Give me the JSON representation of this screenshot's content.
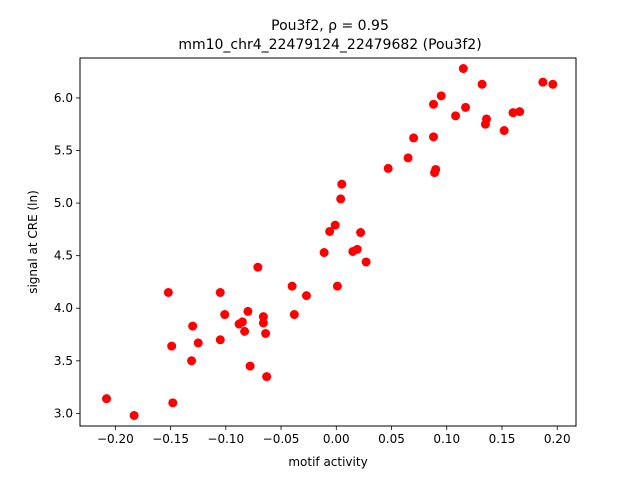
{
  "chart_data": {
    "type": "scatter",
    "title_line1": "Pou3f2, ρ = 0.95",
    "title_line2": "mm10_chr4_22479124_22479682 (Pou3f2)",
    "xlabel": "motif activity",
    "ylabel": "signal at CRE (ln)",
    "xlim": [
      -0.232,
      0.217
    ],
    "ylim": [
      2.88,
      6.38
    ],
    "xticks": [
      -0.2,
      -0.15,
      -0.1,
      -0.05,
      0.0,
      0.05,
      0.1,
      0.15,
      0.2
    ],
    "xtick_labels": [
      "−0.20",
      "−0.15",
      "−0.10",
      "−0.05",
      "0.00",
      "0.05",
      "0.10",
      "0.15",
      "0.20"
    ],
    "yticks": [
      3.0,
      3.5,
      4.0,
      4.5,
      5.0,
      5.5,
      6.0
    ],
    "ytick_labels": [
      "3.0",
      "3.5",
      "4.0",
      "4.5",
      "5.0",
      "5.5",
      "6.0"
    ],
    "marker_color": "#ff0000",
    "grid": false,
    "legend": "none",
    "series": [
      {
        "points": [
          [
            -0.208,
            3.14
          ],
          [
            -0.183,
            2.98
          ],
          [
            -0.152,
            4.15
          ],
          [
            -0.149,
            3.64
          ],
          [
            -0.148,
            3.1
          ],
          [
            -0.131,
            3.5
          ],
          [
            -0.13,
            3.83
          ],
          [
            -0.125,
            3.67
          ],
          [
            -0.105,
            4.15
          ],
          [
            -0.105,
            3.7
          ],
          [
            -0.101,
            3.94
          ],
          [
            -0.088,
            3.85
          ],
          [
            -0.085,
            3.87
          ],
          [
            -0.083,
            3.78
          ],
          [
            -0.08,
            3.97
          ],
          [
            -0.078,
            3.45
          ],
          [
            -0.071,
            4.39
          ],
          [
            -0.066,
            3.92
          ],
          [
            -0.066,
            3.86
          ],
          [
            -0.064,
            3.76
          ],
          [
            -0.063,
            3.35
          ],
          [
            -0.04,
            4.21
          ],
          [
            -0.038,
            3.94
          ],
          [
            -0.027,
            4.12
          ],
          [
            -0.011,
            4.53
          ],
          [
            -0.006,
            4.73
          ],
          [
            -0.001,
            4.79
          ],
          [
            0.001,
            4.21
          ],
          [
            0.004,
            5.04
          ],
          [
            0.005,
            5.18
          ],
          [
            0.015,
            4.54
          ],
          [
            0.019,
            4.56
          ],
          [
            0.022,
            4.72
          ],
          [
            0.027,
            4.44
          ],
          [
            0.047,
            5.33
          ],
          [
            0.065,
            5.43
          ],
          [
            0.07,
            5.62
          ],
          [
            0.088,
            5.63
          ],
          [
            0.088,
            5.94
          ],
          [
            0.089,
            5.29
          ],
          [
            0.09,
            5.32
          ],
          [
            0.095,
            6.02
          ],
          [
            0.108,
            5.83
          ],
          [
            0.115,
            6.28
          ],
          [
            0.117,
            5.91
          ],
          [
            0.132,
            6.13
          ],
          [
            0.135,
            5.75
          ],
          [
            0.136,
            5.8
          ],
          [
            0.152,
            5.69
          ],
          [
            0.16,
            5.86
          ],
          [
            0.166,
            5.87
          ],
          [
            0.187,
            6.15
          ],
          [
            0.196,
            6.13
          ]
        ]
      }
    ]
  }
}
